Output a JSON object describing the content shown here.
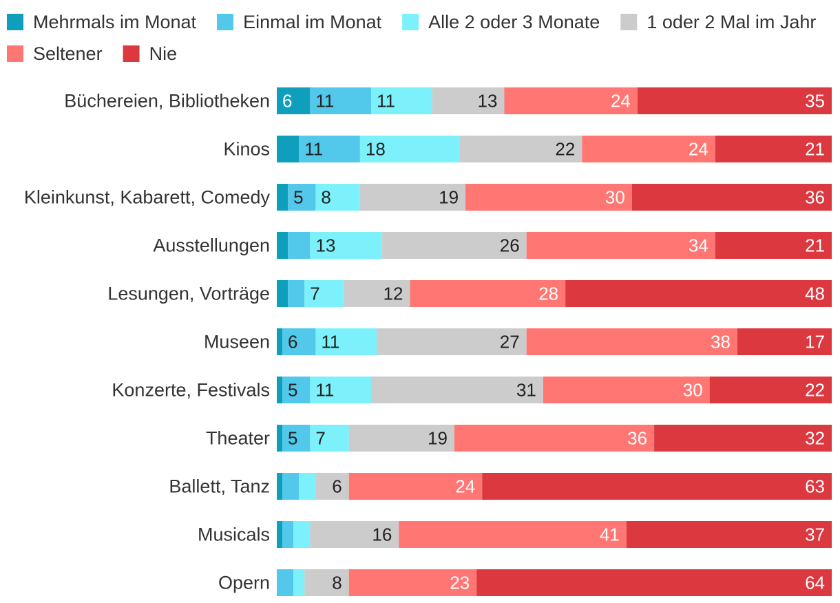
{
  "chart_data": {
    "type": "stacked-bar-horizontal",
    "title": "",
    "xlabel": "",
    "ylabel": "",
    "xlim": [
      0,
      100
    ],
    "legend_position": "top",
    "categories": [
      "Büchereien, Bibliotheken",
      "Kinos",
      "Kleinkunst, Kabarett, Comedy",
      "Ausstellungen",
      "Lesungen, Vorträge",
      "Museen",
      "Konzerte, Festivals",
      "Theater",
      "Ballett, Tanz",
      "Musicals",
      "Opern"
    ],
    "series": [
      {
        "name": "Mehrmals im Monat",
        "color": "#0f9fbd",
        "label_color": "#ffffff",
        "values": [
          6,
          4,
          2,
          2,
          2,
          1,
          1,
          1,
          1,
          1,
          0
        ],
        "labels": [
          "6",
          "",
          "",
          "",
          "",
          "",
          "",
          "",
          "",
          "",
          ""
        ]
      },
      {
        "name": "Einmal im Monat",
        "color": "#52c8ea",
        "label_color": "#222222",
        "values": [
          11,
          11,
          5,
          4,
          3,
          6,
          5,
          5,
          3,
          2,
          3
        ],
        "labels": [
          "11",
          "11",
          "5",
          "",
          "",
          "6",
          "5",
          "5",
          "",
          "",
          ""
        ]
      },
      {
        "name": "Alle 2 oder 3 Monate",
        "color": "#7cf0fb",
        "label_color": "#222222",
        "values": [
          11,
          18,
          8,
          13,
          7,
          11,
          11,
          7,
          3,
          3,
          2
        ],
        "labels": [
          "11",
          "18",
          "8",
          "13",
          "7",
          "11",
          "11",
          "7",
          "",
          "",
          ""
        ]
      },
      {
        "name": "1 oder 2 Mal im Jahr",
        "color": "#cccccc",
        "label_color": "#222222",
        "values": [
          13,
          22,
          19,
          26,
          12,
          27,
          31,
          19,
          6,
          16,
          8
        ],
        "labels": [
          "13",
          "22",
          "19",
          "26",
          "12",
          "27",
          "31",
          "19",
          "6",
          "16",
          "8"
        ]
      },
      {
        "name": "Seltener",
        "color": "#ff7672",
        "label_color": "#ffffff",
        "values": [
          24,
          24,
          30,
          34,
          28,
          38,
          30,
          36,
          24,
          41,
          23
        ],
        "labels": [
          "24",
          "24",
          "30",
          "34",
          "28",
          "38",
          "30",
          "36",
          "24",
          "41",
          "23"
        ]
      },
      {
        "name": "Nie",
        "color": "#dc3840",
        "label_color": "#ffffff",
        "values": [
          35,
          21,
          36,
          21,
          48,
          17,
          22,
          32,
          63,
          37,
          64
        ],
        "labels": [
          "35",
          "21",
          "36",
          "21",
          "48",
          "17",
          "22",
          "32",
          "63",
          "37",
          "64"
        ]
      }
    ]
  }
}
